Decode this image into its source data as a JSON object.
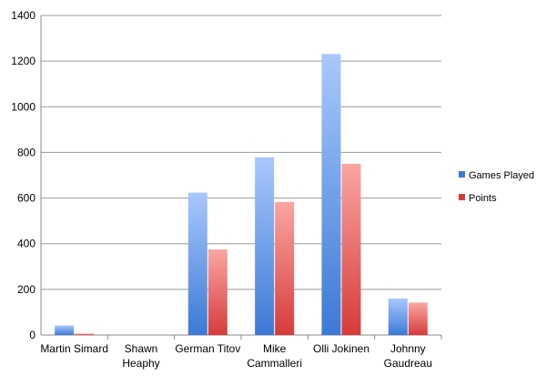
{
  "chart_data": {
    "type": "bar",
    "categories": [
      [
        "Martin Simard"
      ],
      [
        "Shawn",
        "Heaphy"
      ],
      [
        "German Titov"
      ],
      [
        "Mike",
        "Cammalleri"
      ],
      [
        "Olli Jokinen"
      ],
      [
        "Johnny",
        "Gaudreau"
      ]
    ],
    "series": [
      {
        "name": "Games Played",
        "values": [
          42,
          0,
          624,
          779,
          1231,
          160
        ],
        "color_top": "#a9c8fc",
        "color_bottom": "#3c79d6"
      },
      {
        "name": "Points",
        "values": [
          6,
          0,
          375,
          583,
          750,
          142
        ],
        "color_top": "#fba6a3",
        "color_bottom": "#d63b3a"
      }
    ],
    "ylim": [
      0,
      1400
    ],
    "yticks": [
      "0",
      "200",
      "400",
      "600",
      "800",
      "1000",
      "1200",
      "1400"
    ],
    "grid": true,
    "legend_position": "right"
  }
}
